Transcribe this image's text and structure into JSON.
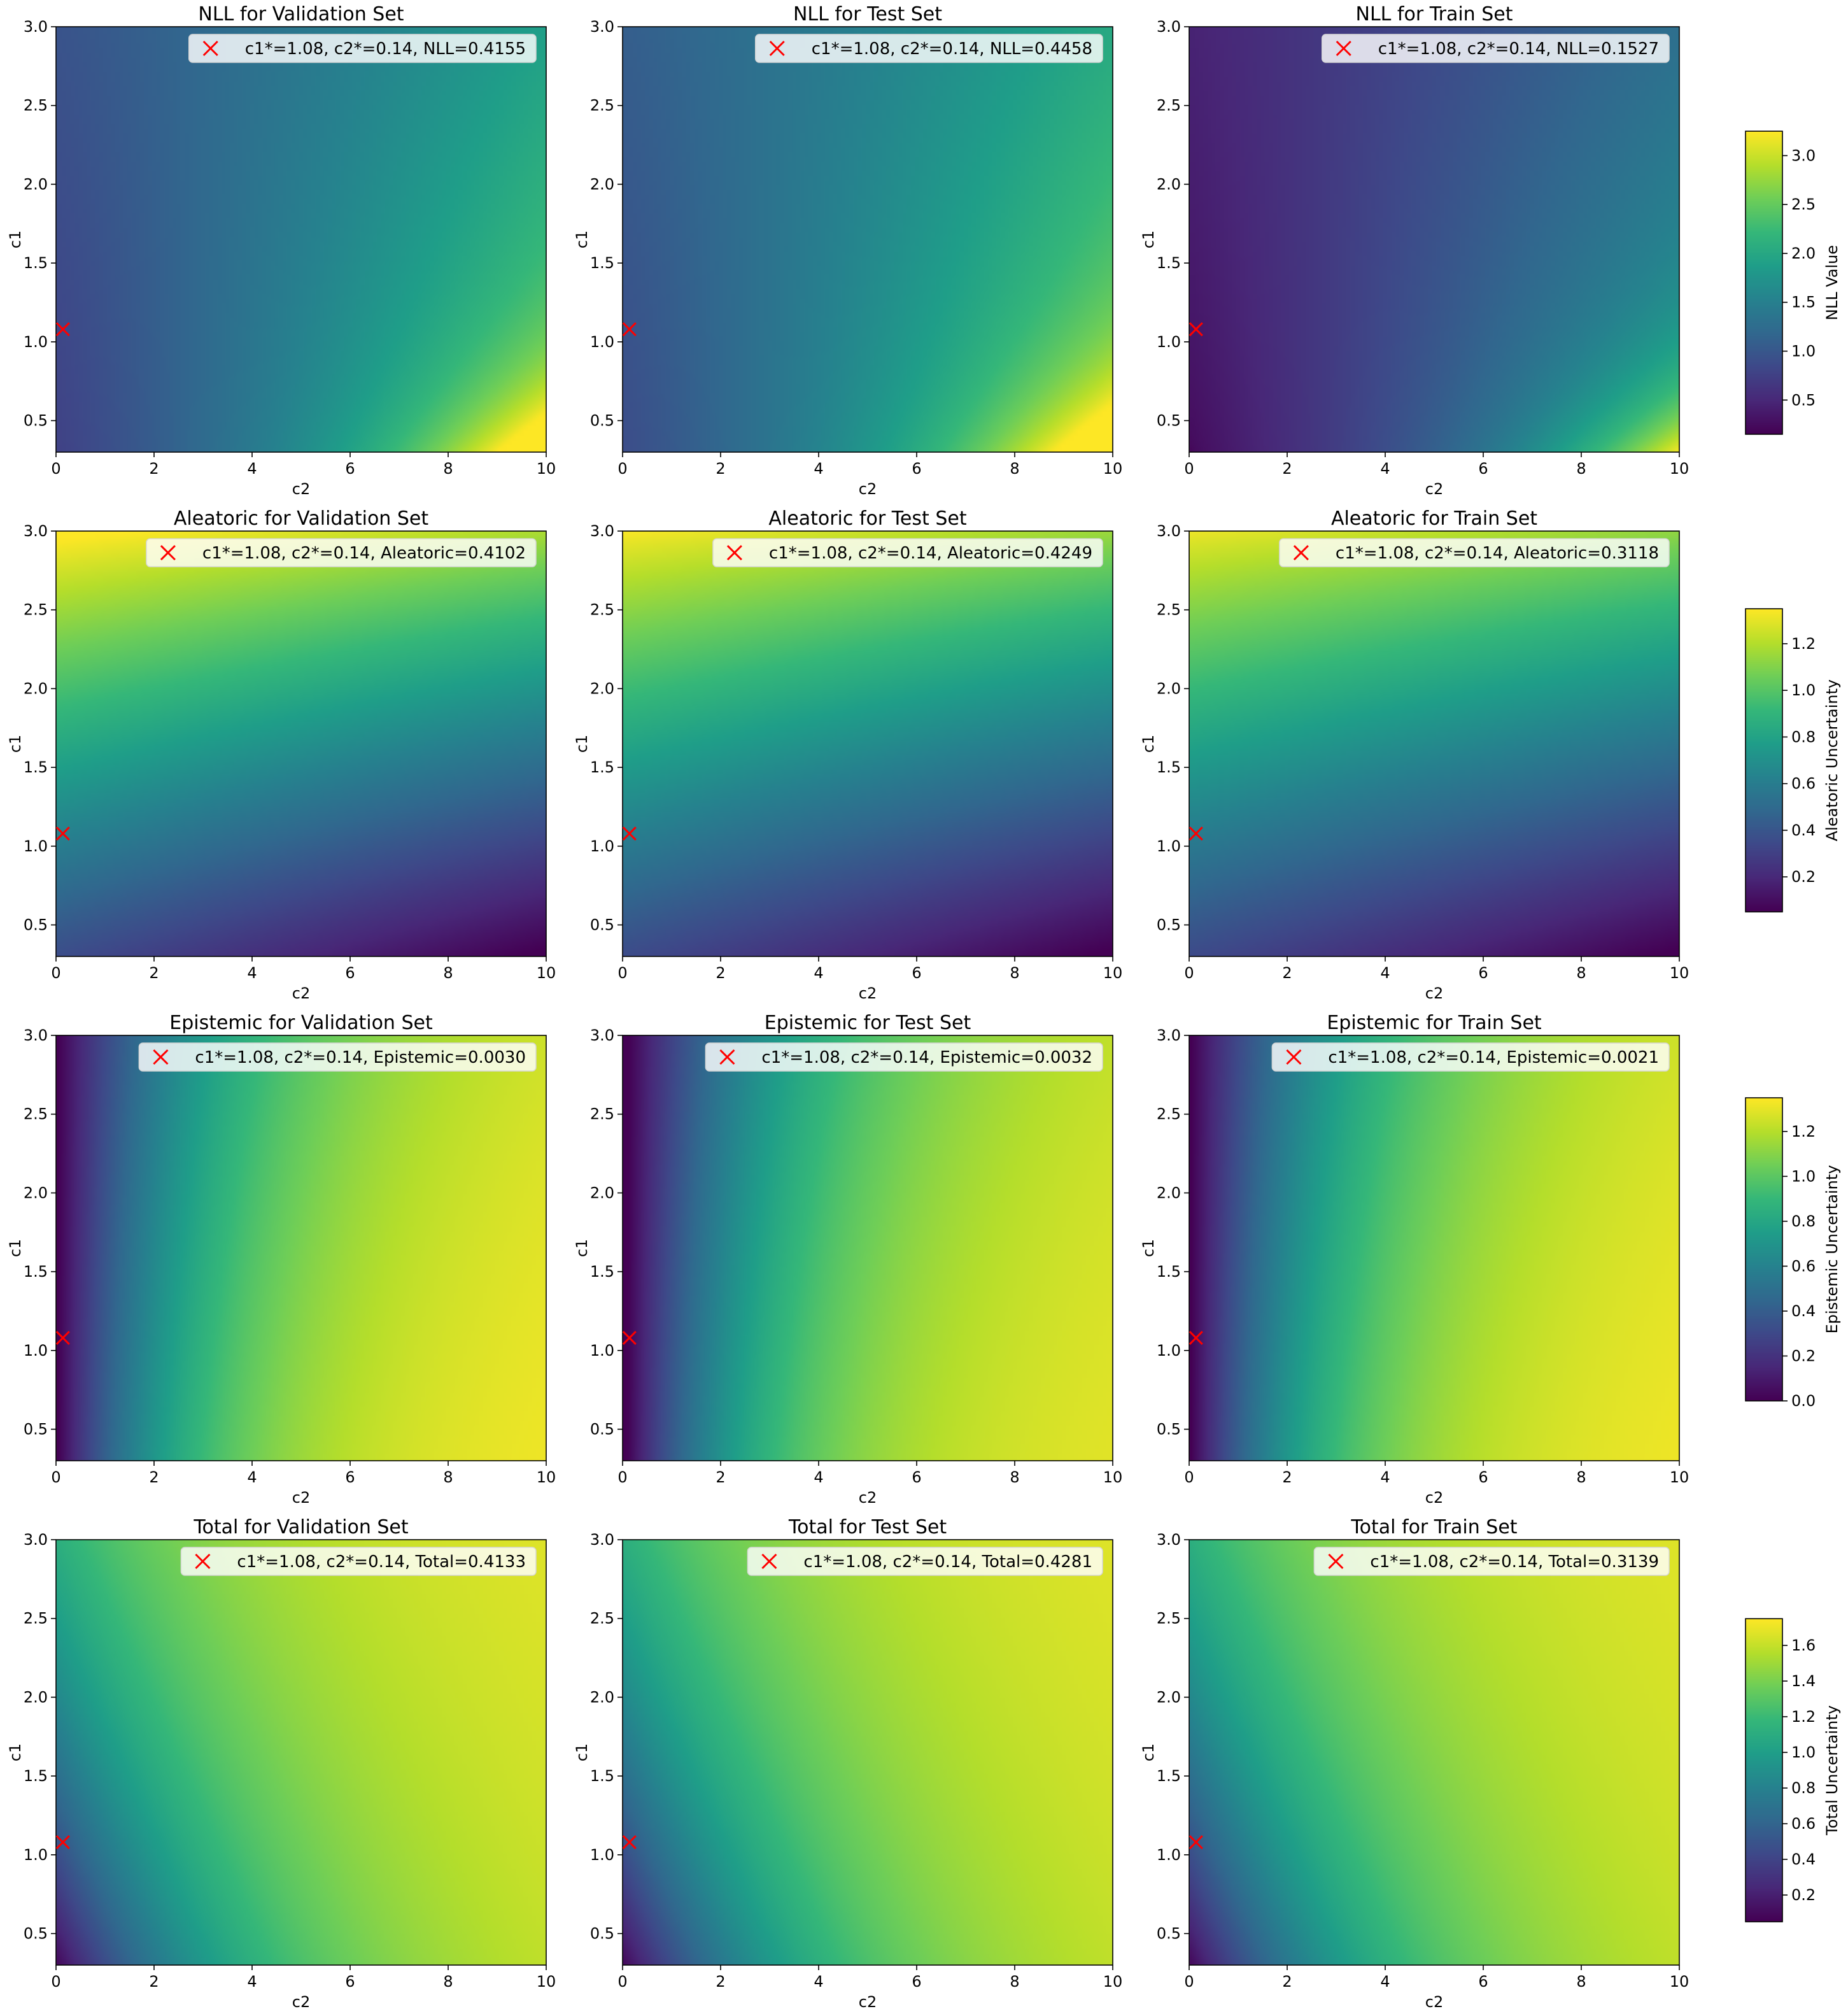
{
  "figure": {
    "colormap": "viridis",
    "marker_color": "#ff0000",
    "axis": {
      "xlabel": "c2",
      "ylabel": "c1",
      "xlim": [
        0,
        10
      ],
      "ylim": [
        0.3,
        3.0
      ],
      "xticks": [
        "0",
        "2",
        "4",
        "6",
        "8",
        "10"
      ],
      "yticks": [
        "0.5",
        "1.0",
        "1.5",
        "2.0",
        "2.5",
        "3.0"
      ]
    }
  },
  "colorbars": [
    {
      "label": "NLL Value",
      "ticks": [
        "0.5",
        "1.0",
        "1.5",
        "2.0",
        "2.5",
        "3.0"
      ]
    },
    {
      "label": "Aleatoric Uncertainty",
      "ticks": [
        "0.2",
        "0.4",
        "0.6",
        "0.8",
        "1.0",
        "1.2"
      ]
    },
    {
      "label": "Epistemic Uncertainty",
      "ticks": [
        "0.0",
        "0.2",
        "0.4",
        "0.6",
        "0.8",
        "1.0",
        "1.2"
      ]
    },
    {
      "label": "Total Uncertainty",
      "ticks": [
        "0.2",
        "0.4",
        "0.6",
        "0.8",
        "1.0",
        "1.2",
        "1.4",
        "1.6"
      ]
    }
  ],
  "chart_data": [
    {
      "type": "heatmap",
      "title": "NLL for Validation Set",
      "xlabel": "c2",
      "ylabel": "c1",
      "xlim": [
        0,
        10
      ],
      "ylim": [
        0.3,
        3.0
      ],
      "colorbar": "NLL Value",
      "vmin": 0.15,
      "vmax": 3.25,
      "marker": {
        "c1": 1.08,
        "c2": 0.14
      },
      "legend": "c1*=1.08, c2*=0.14, NLL=0.4155"
    },
    {
      "type": "heatmap",
      "title": "NLL for Test Set",
      "xlabel": "c2",
      "ylabel": "c1",
      "xlim": [
        0,
        10
      ],
      "ylim": [
        0.3,
        3.0
      ],
      "colorbar": "NLL Value",
      "vmin": 0.15,
      "vmax": 3.25,
      "marker": {
        "c1": 1.08,
        "c2": 0.14
      },
      "legend": "c1*=1.08, c2*=0.14, NLL=0.4458"
    },
    {
      "type": "heatmap",
      "title": "NLL for Train Set",
      "xlabel": "c2",
      "ylabel": "c1",
      "xlim": [
        0,
        10
      ],
      "ylim": [
        0.3,
        3.0
      ],
      "colorbar": "NLL Value",
      "vmin": 0.15,
      "vmax": 3.25,
      "marker": {
        "c1": 1.08,
        "c2": 0.14
      },
      "legend": "c1*=1.08, c2*=0.14, NLL=0.1527"
    },
    {
      "type": "heatmap",
      "title": "Aleatoric for Validation Set",
      "xlabel": "c2",
      "ylabel": "c1",
      "xlim": [
        0,
        10
      ],
      "ylim": [
        0.3,
        3.0
      ],
      "colorbar": "Aleatoric Uncertainty",
      "vmin": 0.05,
      "vmax": 1.35,
      "marker": {
        "c1": 1.08,
        "c2": 0.14
      },
      "legend": "c1*=1.08, c2*=0.14, Aleatoric=0.4102"
    },
    {
      "type": "heatmap",
      "title": "Aleatoric for Test Set",
      "xlabel": "c2",
      "ylabel": "c1",
      "xlim": [
        0,
        10
      ],
      "ylim": [
        0.3,
        3.0
      ],
      "colorbar": "Aleatoric Uncertainty",
      "vmin": 0.05,
      "vmax": 1.35,
      "marker": {
        "c1": 1.08,
        "c2": 0.14
      },
      "legend": "c1*=1.08, c2*=0.14, Aleatoric=0.4249"
    },
    {
      "type": "heatmap",
      "title": "Aleatoric for Train Set",
      "xlabel": "c2",
      "ylabel": "c1",
      "xlim": [
        0,
        10
      ],
      "ylim": [
        0.3,
        3.0
      ],
      "colorbar": "Aleatoric Uncertainty",
      "vmin": 0.05,
      "vmax": 1.35,
      "marker": {
        "c1": 1.08,
        "c2": 0.14
      },
      "legend": "c1*=1.08, c2*=0.14, Aleatoric=0.3118"
    },
    {
      "type": "heatmap",
      "title": "Epistemic for Validation Set",
      "xlabel": "c2",
      "ylabel": "c1",
      "xlim": [
        0,
        10
      ],
      "ylim": [
        0.3,
        3.0
      ],
      "colorbar": "Epistemic Uncertainty",
      "vmin": 0.0,
      "vmax": 1.35,
      "marker": {
        "c1": 1.08,
        "c2": 0.14
      },
      "legend": "c1*=1.08, c2*=0.14, Epistemic=0.0030"
    },
    {
      "type": "heatmap",
      "title": "Epistemic for Test Set",
      "xlabel": "c2",
      "ylabel": "c1",
      "xlim": [
        0,
        10
      ],
      "ylim": [
        0.3,
        3.0
      ],
      "colorbar": "Epistemic Uncertainty",
      "vmin": 0.0,
      "vmax": 1.35,
      "marker": {
        "c1": 1.08,
        "c2": 0.14
      },
      "legend": "c1*=1.08, c2*=0.14, Epistemic=0.0032"
    },
    {
      "type": "heatmap",
      "title": "Epistemic for Train Set",
      "xlabel": "c2",
      "ylabel": "c1",
      "xlim": [
        0,
        10
      ],
      "ylim": [
        0.3,
        3.0
      ],
      "colorbar": "Epistemic Uncertainty",
      "vmin": 0.0,
      "vmax": 1.35,
      "marker": {
        "c1": 1.08,
        "c2": 0.14
      },
      "legend": "c1*=1.08, c2*=0.14, Epistemic=0.0021"
    },
    {
      "type": "heatmap",
      "title": "Total for Validation Set",
      "xlabel": "c2",
      "ylabel": "c1",
      "xlim": [
        0,
        10
      ],
      "ylim": [
        0.3,
        3.0
      ],
      "colorbar": "Total Uncertainty",
      "vmin": 0.05,
      "vmax": 1.75,
      "marker": {
        "c1": 1.08,
        "c2": 0.14
      },
      "legend": "c1*=1.08, c2*=0.14, Total=0.4133"
    },
    {
      "type": "heatmap",
      "title": "Total for Test Set",
      "xlabel": "c2",
      "ylabel": "c1",
      "xlim": [
        0,
        10
      ],
      "ylim": [
        0.3,
        3.0
      ],
      "colorbar": "Total Uncertainty",
      "vmin": 0.05,
      "vmax": 1.75,
      "marker": {
        "c1": 1.08,
        "c2": 0.14
      },
      "legend": "c1*=1.08, c2*=0.14, Total=0.4281"
    },
    {
      "type": "heatmap",
      "title": "Total for Train Set",
      "xlabel": "c2",
      "ylabel": "c1",
      "xlim": [
        0,
        10
      ],
      "ylim": [
        0.3,
        3.0
      ],
      "colorbar": "Total Uncertainty",
      "vmin": 0.05,
      "vmax": 1.75,
      "marker": {
        "c1": 1.08,
        "c2": 0.14
      },
      "legend": "c1*=1.08, c2*=0.14, Total=0.3139"
    }
  ]
}
